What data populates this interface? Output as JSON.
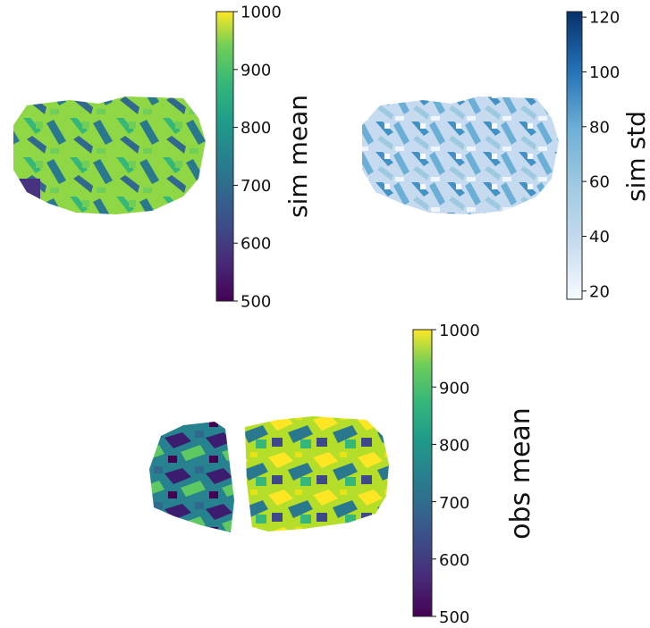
{
  "chart_data": [
    {
      "type": "heatmap",
      "colormap": "viridis",
      "colorbar_label": "sim mean",
      "clim": [
        500,
        1000
      ],
      "ticks": [
        "500",
        "600",
        "700",
        "800",
        "900",
        "1000"
      ],
      "tick_values": [
        500,
        600,
        700,
        800,
        900,
        1000
      ]
    },
    {
      "type": "heatmap",
      "colormap": "Blues",
      "colorbar_label": "sim std",
      "clim": [
        17,
        122
      ],
      "ticks": [
        "20",
        "40",
        "60",
        "80",
        "100",
        "120"
      ],
      "tick_values": [
        20,
        40,
        60,
        80,
        100,
        120
      ]
    },
    {
      "type": "heatmap",
      "colormap": "viridis",
      "colorbar_label": "obs mean",
      "clim": [
        500,
        1000
      ],
      "ticks": [
        "500",
        "600",
        "700",
        "800",
        "900",
        "1000"
      ],
      "tick_values": [
        500,
        600,
        700,
        800,
        900,
        1000
      ]
    }
  ]
}
